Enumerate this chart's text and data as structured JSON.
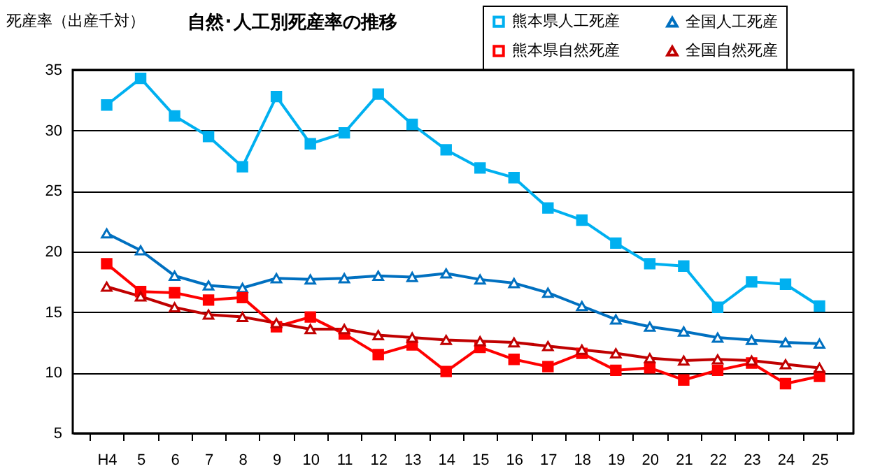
{
  "chart_data": {
    "type": "line",
    "title": "自然･人工別死産率の推移",
    "ylabel": "死産率（出産千対）",
    "categories": [
      "H4",
      "5",
      "6",
      "7",
      "8",
      "9",
      "10",
      "11",
      "12",
      "13",
      "14",
      "15",
      "16",
      "17",
      "18",
      "19",
      "20",
      "21",
      "22",
      "23",
      "24",
      "25"
    ],
    "series": [
      {
        "name": "熊本県人工死産",
        "color": "#00b0f0",
        "marker": "square",
        "values": [
          32.1,
          34.3,
          31.2,
          29.5,
          27.0,
          32.8,
          28.9,
          29.8,
          33.0,
          30.5,
          28.4,
          26.9,
          26.1,
          23.6,
          22.6,
          20.7,
          19.0,
          18.8,
          15.4,
          17.5,
          17.3,
          15.5
        ]
      },
      {
        "name": "全国人工死産",
        "color": "#0070c0",
        "marker": "triangle",
        "values": [
          21.5,
          20.1,
          18.0,
          17.2,
          17.0,
          17.8,
          17.7,
          17.8,
          18.0,
          17.9,
          18.2,
          17.7,
          17.4,
          16.6,
          15.5,
          14.4,
          13.8,
          13.4,
          12.9,
          12.7,
          12.5,
          12.4
        ]
      },
      {
        "name": "熊本県自然死産",
        "color": "#ff0000",
        "marker": "square",
        "values": [
          19.0,
          16.7,
          16.6,
          16.0,
          16.2,
          13.8,
          14.6,
          13.2,
          11.5,
          12.3,
          10.1,
          12.1,
          11.1,
          10.5,
          11.6,
          10.2,
          10.4,
          9.4,
          10.2,
          10.8,
          9.1,
          9.7
        ]
      },
      {
        "name": "全国自然死産",
        "color": "#c00000",
        "marker": "triangle",
        "values": [
          17.1,
          16.3,
          15.4,
          14.8,
          14.6,
          14.1,
          13.6,
          13.6,
          13.1,
          12.9,
          12.7,
          12.6,
          12.5,
          12.2,
          11.9,
          11.6,
          11.2,
          11.0,
          11.1,
          11.0,
          10.7,
          10.4
        ]
      }
    ],
    "ylim": [
      5,
      35
    ],
    "yticks": [
      5,
      10,
      15,
      20,
      25,
      30,
      35
    ],
    "grid": "y",
    "legend": "top right"
  }
}
